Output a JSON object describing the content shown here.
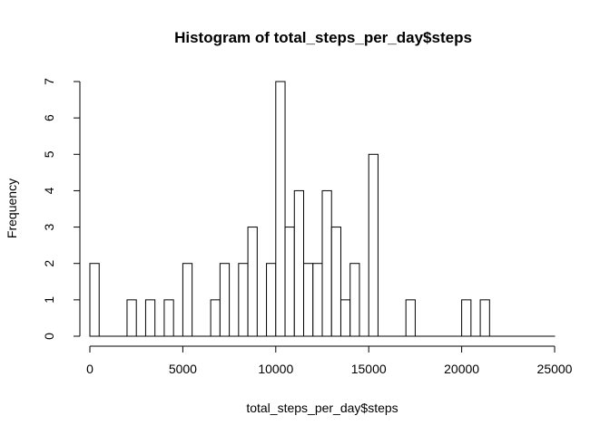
{
  "chart_data": {
    "type": "bar",
    "title": "Histogram of total_steps_per_day$steps",
    "xlabel": "total_steps_per_day$steps",
    "ylabel": "Frequency",
    "xlim": [
      0,
      25000
    ],
    "ylim": [
      0,
      7
    ],
    "bin_width": 500,
    "x_ticks": [
      "0",
      "5000",
      "10000",
      "15000",
      "20000",
      "25000"
    ],
    "y_ticks": [
      "0",
      "1",
      "2",
      "3",
      "4",
      "5",
      "6",
      "7"
    ],
    "bin_start": [
      0,
      500,
      1000,
      1500,
      2000,
      2500,
      3000,
      3500,
      4000,
      4500,
      5000,
      5500,
      6000,
      6500,
      7000,
      7500,
      8000,
      8500,
      9000,
      9500,
      10000,
      10500,
      11000,
      11500,
      12000,
      12500,
      13000,
      13500,
      14000,
      14500,
      15000,
      15500,
      16000,
      16500,
      17000,
      17500,
      18000,
      18500,
      19000,
      19500,
      20000,
      20500,
      21000,
      21500,
      22000,
      22500,
      23000,
      23500,
      24000,
      24500
    ],
    "values": [
      2,
      0,
      0,
      0,
      1,
      0,
      1,
      0,
      1,
      0,
      2,
      0,
      0,
      1,
      2,
      0,
      2,
      3,
      0,
      2,
      7,
      3,
      4,
      2,
      2,
      4,
      3,
      1,
      2,
      0,
      5,
      0,
      0,
      0,
      1,
      0,
      0,
      0,
      0,
      0,
      1,
      0,
      1,
      0,
      0,
      0,
      0,
      0,
      0,
      0
    ],
    "grid": false,
    "legend": "none",
    "bar_fill": "#ffffff",
    "bar_stroke": "#000000"
  }
}
